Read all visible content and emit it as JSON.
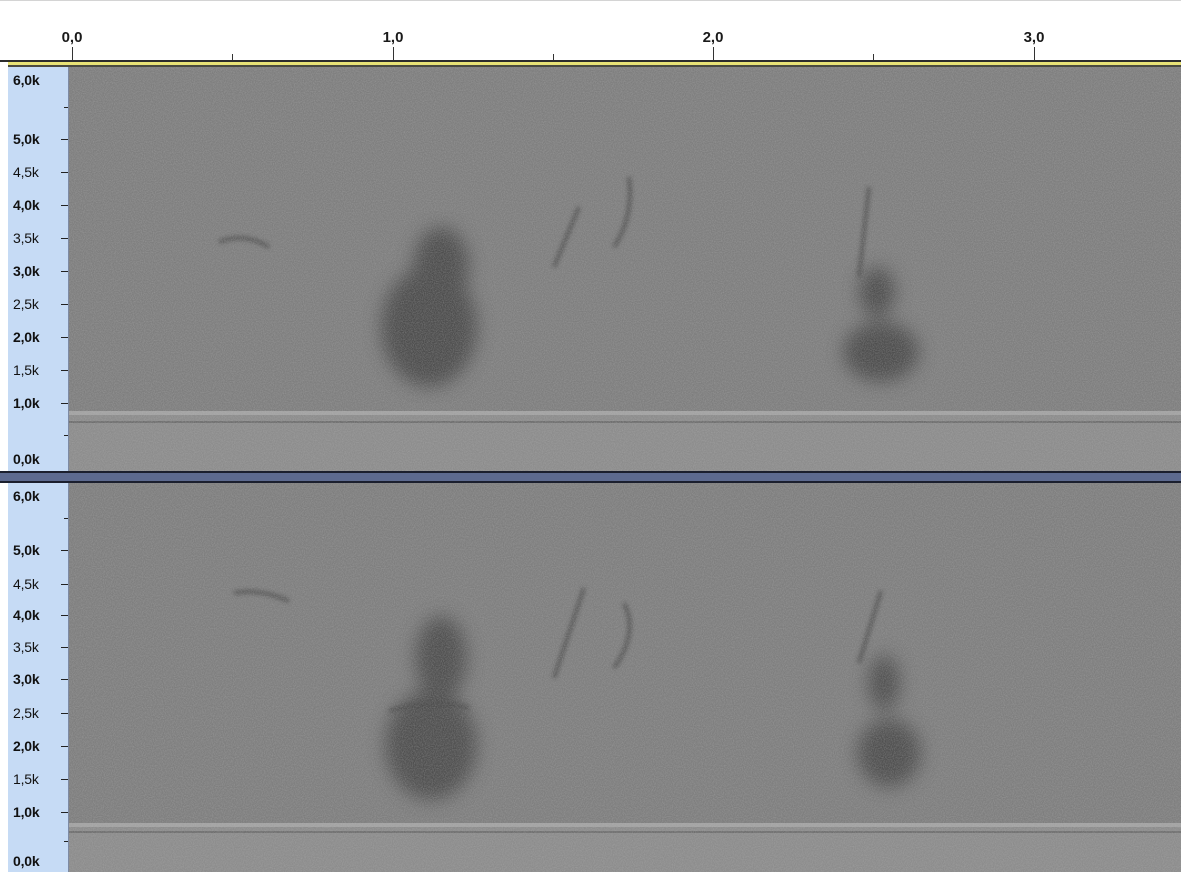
{
  "timeline": {
    "labels": [
      "0,0",
      "1,0",
      "2,0",
      "3,0"
    ]
  },
  "tracks": [
    {
      "name": "channel-1",
      "freq_labels": [
        {
          "text": "6,0k",
          "bold": true
        },
        {
          "text": "5,0k",
          "bold": true
        },
        {
          "text": "4,5k",
          "bold": false
        },
        {
          "text": "4,0k",
          "bold": true
        },
        {
          "text": "3,5k",
          "bold": false
        },
        {
          "text": "3,0k",
          "bold": true
        },
        {
          "text": "2,5k",
          "bold": false
        },
        {
          "text": "2,0k",
          "bold": true
        },
        {
          "text": "1,5k",
          "bold": false
        },
        {
          "text": "1,0k",
          "bold": true
        },
        {
          "text": "0,0k",
          "bold": true
        }
      ]
    },
    {
      "name": "channel-2",
      "freq_labels": [
        {
          "text": "6,0k",
          "bold": true
        },
        {
          "text": "5,0k",
          "bold": true
        },
        {
          "text": "4,5k",
          "bold": false
        },
        {
          "text": "4,0k",
          "bold": true
        },
        {
          "text": "3,5k",
          "bold": false
        },
        {
          "text": "3,0k",
          "bold": true
        },
        {
          "text": "2,5k",
          "bold": false
        },
        {
          "text": "2,0k",
          "bold": true
        },
        {
          "text": "1,5k",
          "bold": false
        },
        {
          "text": "1,0k",
          "bold": true
        },
        {
          "text": "0,0k",
          "bold": true
        }
      ]
    }
  ],
  "colors": {
    "ruler_bg": "#ffffff",
    "play_region": "#e8e276",
    "vertical_ruler_bg": "#c6dbf5",
    "track_divider": "#5d6a8f",
    "spectrogram_base": "#7c7c7c"
  }
}
